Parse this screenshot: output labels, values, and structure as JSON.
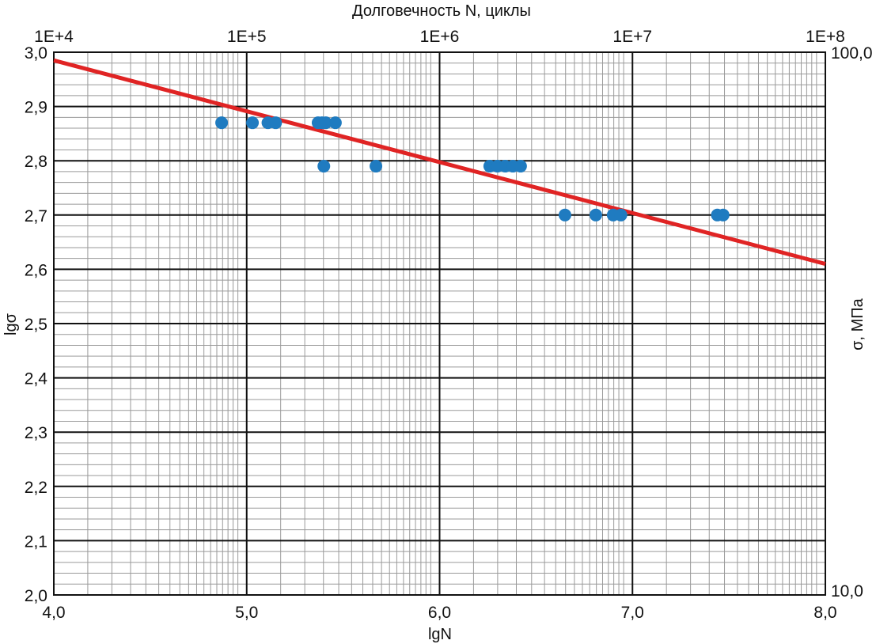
{
  "chart_data": {
    "type": "scatter",
    "title": "",
    "xlabel": "lgN",
    "ylabel": "lgσ",
    "top_axis_label": "Долговечность N, циклы",
    "right_axis_label": "σ, МПа",
    "xlim": [
      4.0,
      8.0
    ],
    "ylim": [
      2.0,
      3.0
    ],
    "x_ticks": [
      "4,0",
      "5,0",
      "6,0",
      "7,0",
      "8,0"
    ],
    "y_ticks": [
      "2,0",
      "2,1",
      "2,2",
      "2,3",
      "2,4",
      "2,5",
      "2,6",
      "2,7",
      "2,8",
      "2,9",
      "3,0"
    ],
    "top_ticks": [
      "1E+4",
      "1E+5",
      "1E+6",
      "1E+7",
      "1E+8"
    ],
    "right_ticks": [
      "10,0",
      "100,0"
    ],
    "grid": true,
    "colors": {
      "points": "#1f7bc0",
      "line": "#e02424",
      "grid_major": "#111111",
      "grid_minor": "#9a9a9a"
    },
    "series": [
      {
        "type": "scatter",
        "x": [
          4.87,
          5.03,
          5.11,
          5.15,
          5.37,
          5.39,
          5.41,
          5.46,
          5.4,
          5.67,
          6.26,
          6.3,
          6.34,
          6.38,
          6.42,
          6.65,
          6.81,
          6.9,
          6.94,
          7.44,
          7.47
        ],
        "y": [
          2.87,
          2.87,
          2.87,
          2.87,
          2.87,
          2.87,
          2.87,
          2.87,
          2.79,
          2.79,
          2.79,
          2.79,
          2.79,
          2.79,
          2.79,
          2.7,
          2.7,
          2.7,
          2.7,
          2.7,
          2.7
        ]
      },
      {
        "type": "line",
        "x": [
          4.0,
          8.0
        ],
        "y": [
          2.985,
          2.61
        ]
      }
    ]
  }
}
